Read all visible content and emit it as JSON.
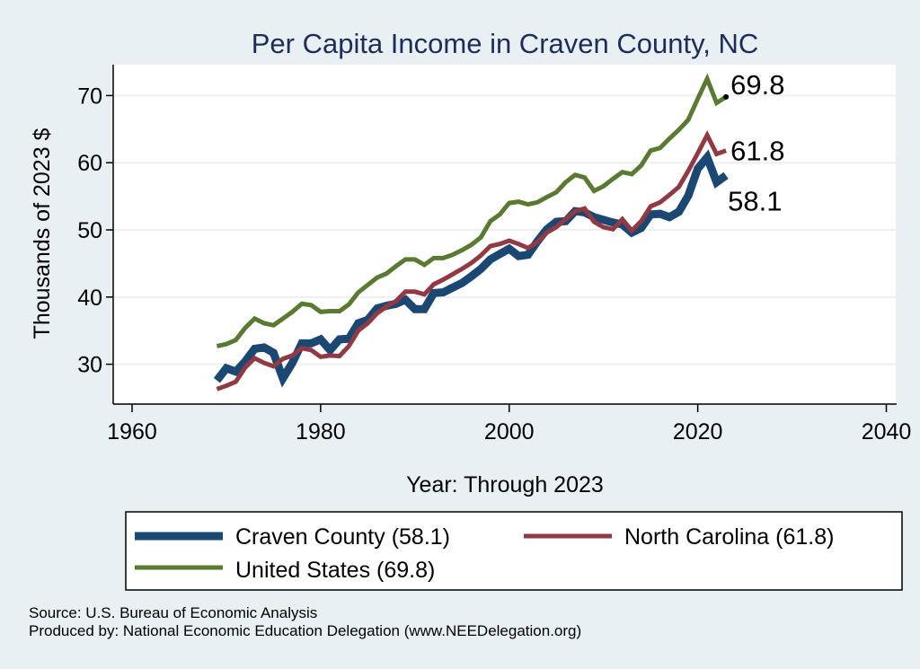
{
  "chart_data": {
    "type": "line",
    "title": "Per Capita Income in Craven County, NC",
    "xlabel": "Year: Through 2023",
    "ylabel": "Thousands of 2023 $",
    "xlim": [
      1958,
      2041
    ],
    "ylim": [
      24.2,
      74.6
    ],
    "xticks": [
      1960,
      1980,
      2000,
      2020,
      2040
    ],
    "yticks": [
      30,
      40,
      50,
      60,
      70
    ],
    "grid": true,
    "legend_position": "bottom",
    "x": [
      1969,
      1970,
      1971,
      1972,
      1973,
      1974,
      1975,
      1976,
      1977,
      1978,
      1979,
      1980,
      1981,
      1982,
      1983,
      1984,
      1985,
      1986,
      1987,
      1988,
      1989,
      1990,
      1991,
      1992,
      1993,
      1994,
      1995,
      1996,
      1997,
      1998,
      1999,
      2000,
      2001,
      2002,
      2003,
      2004,
      2005,
      2006,
      2007,
      2008,
      2009,
      2010,
      2011,
      2012,
      2013,
      2014,
      2015,
      2016,
      2017,
      2018,
      2019,
      2020,
      2021,
      2022,
      2023
    ],
    "series": [
      {
        "name": "Craven County (58.1)",
        "color": "#1a4872",
        "end_label": "58.1",
        "values": [
          27.6,
          29.4,
          28.9,
          30.4,
          32.3,
          32.5,
          31.7,
          27.9,
          30.2,
          33.1,
          33.1,
          33.7,
          32.1,
          33.7,
          33.8,
          36.1,
          36.6,
          38.3,
          38.7,
          39.0,
          39.6,
          38.2,
          38.2,
          40.6,
          40.7,
          41.4,
          42.1,
          43.1,
          44.2,
          45.6,
          46.4,
          47.2,
          46.1,
          46.3,
          48.3,
          50.1,
          51.2,
          51.3,
          52.8,
          52.6,
          51.9,
          51.5,
          51.1,
          50.8,
          49.6,
          50.3,
          52.3,
          52.4,
          51.9,
          52.7,
          55.1,
          59.1,
          60.8,
          57.1,
          58.1
        ]
      },
      {
        "name": "North Carolina (61.8)",
        "color": "#923a44",
        "end_label": "61.8",
        "values": [
          26.3,
          26.8,
          27.4,
          29.5,
          30.9,
          30.2,
          29.7,
          30.8,
          31.3,
          32.4,
          32.1,
          31.1,
          31.3,
          31.2,
          32.7,
          35.0,
          36.1,
          37.6,
          38.6,
          39.4,
          40.8,
          40.8,
          40.4,
          41.9,
          42.6,
          43.4,
          44.2,
          45.1,
          46.2,
          47.6,
          47.9,
          48.4,
          47.9,
          47.3,
          48.2,
          49.6,
          50.4,
          51.6,
          52.8,
          53.2,
          51.2,
          50.4,
          50.1,
          51.6,
          49.9,
          51.3,
          53.5,
          54.1,
          55.2,
          56.4,
          58.8,
          61.4,
          64.1,
          61.3,
          61.8
        ]
      },
      {
        "name": "United States (69.8)",
        "color": "#5a7a31",
        "end_label": "69.8",
        "values": [
          32.7,
          33.0,
          33.6,
          35.4,
          36.8,
          36.1,
          35.8,
          36.8,
          37.8,
          39.0,
          38.8,
          37.8,
          37.9,
          37.9,
          38.9,
          40.7,
          41.8,
          42.9,
          43.5,
          44.6,
          45.6,
          45.6,
          44.8,
          45.8,
          45.8,
          46.3,
          47.0,
          47.8,
          48.9,
          51.3,
          52.3,
          54.0,
          54.2,
          53.8,
          54.1,
          54.9,
          55.6,
          57.1,
          58.2,
          57.8,
          55.8,
          56.5,
          57.6,
          58.6,
          58.3,
          59.6,
          61.8,
          62.2,
          63.6,
          64.9,
          66.4,
          69.5,
          72.5,
          68.9,
          69.8
        ]
      }
    ]
  },
  "footer": {
    "source": "Source: U.S. Bureau of Economic Analysis",
    "produced_by": "Produced by: National Economic Education Delegation (www.NEEDelegation.org)"
  }
}
